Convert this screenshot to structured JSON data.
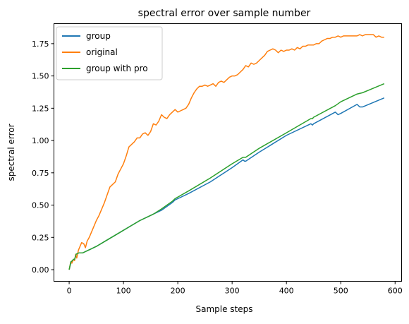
{
  "chart_data": {
    "type": "line",
    "title": "spectral error over sample number",
    "xlabel": "Sample steps",
    "ylabel": "spectral error",
    "xlim": [
      -28,
      612
    ],
    "ylim": [
      -0.09,
      1.905
    ],
    "xticks": [
      0,
      100,
      200,
      300,
      400,
      500,
      600
    ],
    "yticks": [
      0.0,
      0.25,
      0.5,
      0.75,
      1.0,
      1.25,
      1.5,
      1.75
    ],
    "ytick_labels": [
      "0.00",
      "0.25",
      "0.50",
      "0.75",
      "1.00",
      "1.25",
      "1.50",
      "1.75"
    ],
    "grid": false,
    "legend": "top-left",
    "series": [
      {
        "name": "group",
        "color": "#1f77b4",
        "x": [
          0,
          3,
          6,
          8,
          10,
          13,
          18,
          25,
          35,
          50,
          70,
          90,
          110,
          130,
          150,
          155,
          170,
          190,
          195,
          220,
          260,
          300,
          320,
          323,
          325,
          350,
          400,
          445,
          448,
          450,
          490,
          495,
          500,
          530,
          535,
          540,
          580
        ],
        "y": [
          0.0,
          0.05,
          0.07,
          0.08,
          0.08,
          0.12,
          0.13,
          0.13,
          0.15,
          0.18,
          0.23,
          0.28,
          0.33,
          0.38,
          0.42,
          0.43,
          0.46,
          0.52,
          0.54,
          0.59,
          0.68,
          0.79,
          0.85,
          0.84,
          0.84,
          0.91,
          1.04,
          1.13,
          1.12,
          1.13,
          1.22,
          1.2,
          1.21,
          1.28,
          1.26,
          1.26,
          1.33
        ]
      },
      {
        "name": "original",
        "color": "#ff7f0e",
        "x": [
          0,
          3,
          5,
          8,
          10,
          12,
          14,
          17,
          20,
          23,
          27,
          30,
          33,
          37,
          40,
          45,
          50,
          55,
          60,
          65,
          70,
          75,
          80,
          85,
          90,
          95,
          100,
          105,
          110,
          115,
          120,
          125,
          130,
          135,
          140,
          145,
          150,
          155,
          160,
          165,
          170,
          175,
          180,
          185,
          190,
          195,
          200,
          205,
          210,
          215,
          220,
          225,
          230,
          235,
          240,
          245,
          250,
          255,
          260,
          265,
          270,
          275,
          280,
          285,
          290,
          295,
          300,
          305,
          310,
          315,
          320,
          325,
          330,
          335,
          340,
          345,
          350,
          355,
          360,
          365,
          370,
          375,
          380,
          385,
          390,
          395,
          400,
          405,
          410,
          415,
          420,
          425,
          430,
          435,
          440,
          445,
          450,
          455,
          460,
          465,
          470,
          475,
          480,
          485,
          490,
          495,
          500,
          505,
          510,
          515,
          520,
          525,
          530,
          535,
          540,
          545,
          550,
          555,
          560,
          565,
          570,
          575,
          580
        ],
        "y": [
          0.0,
          0.06,
          0.05,
          0.08,
          0.07,
          0.12,
          0.09,
          0.15,
          0.18,
          0.21,
          0.2,
          0.17,
          0.22,
          0.25,
          0.28,
          0.33,
          0.38,
          0.42,
          0.47,
          0.52,
          0.58,
          0.64,
          0.66,
          0.68,
          0.74,
          0.78,
          0.82,
          0.88,
          0.95,
          0.97,
          0.99,
          1.02,
          1.02,
          1.05,
          1.06,
          1.04,
          1.07,
          1.13,
          1.12,
          1.15,
          1.2,
          1.18,
          1.17,
          1.2,
          1.22,
          1.24,
          1.22,
          1.23,
          1.24,
          1.25,
          1.28,
          1.33,
          1.37,
          1.4,
          1.42,
          1.42,
          1.43,
          1.42,
          1.43,
          1.44,
          1.42,
          1.45,
          1.46,
          1.45,
          1.47,
          1.49,
          1.5,
          1.5,
          1.51,
          1.53,
          1.55,
          1.58,
          1.57,
          1.6,
          1.59,
          1.6,
          1.62,
          1.64,
          1.66,
          1.69,
          1.7,
          1.71,
          1.7,
          1.68,
          1.7,
          1.69,
          1.7,
          1.7,
          1.71,
          1.7,
          1.72,
          1.71,
          1.73,
          1.73,
          1.74,
          1.74,
          1.74,
          1.75,
          1.75,
          1.77,
          1.78,
          1.79,
          1.79,
          1.8,
          1.8,
          1.81,
          1.8,
          1.81,
          1.81,
          1.81,
          1.81,
          1.81,
          1.81,
          1.82,
          1.81,
          1.82,
          1.82,
          1.82,
          1.82,
          1.8,
          1.81,
          1.8,
          1.8
        ]
      },
      {
        "name": "group with pro",
        "color": "#2ca02c",
        "x": [
          0,
          3,
          6,
          8,
          10,
          13,
          18,
          25,
          35,
          50,
          70,
          90,
          110,
          130,
          150,
          155,
          170,
          190,
          195,
          220,
          260,
          300,
          320,
          323,
          325,
          350,
          400,
          445,
          448,
          450,
          490,
          500,
          530,
          540,
          580
        ],
        "y": [
          0.0,
          0.06,
          0.07,
          0.08,
          0.08,
          0.12,
          0.13,
          0.13,
          0.15,
          0.18,
          0.23,
          0.28,
          0.33,
          0.38,
          0.42,
          0.43,
          0.47,
          0.53,
          0.55,
          0.61,
          0.71,
          0.82,
          0.87,
          0.87,
          0.87,
          0.94,
          1.06,
          1.17,
          1.17,
          1.18,
          1.27,
          1.3,
          1.36,
          1.37,
          1.44
        ]
      }
    ]
  }
}
